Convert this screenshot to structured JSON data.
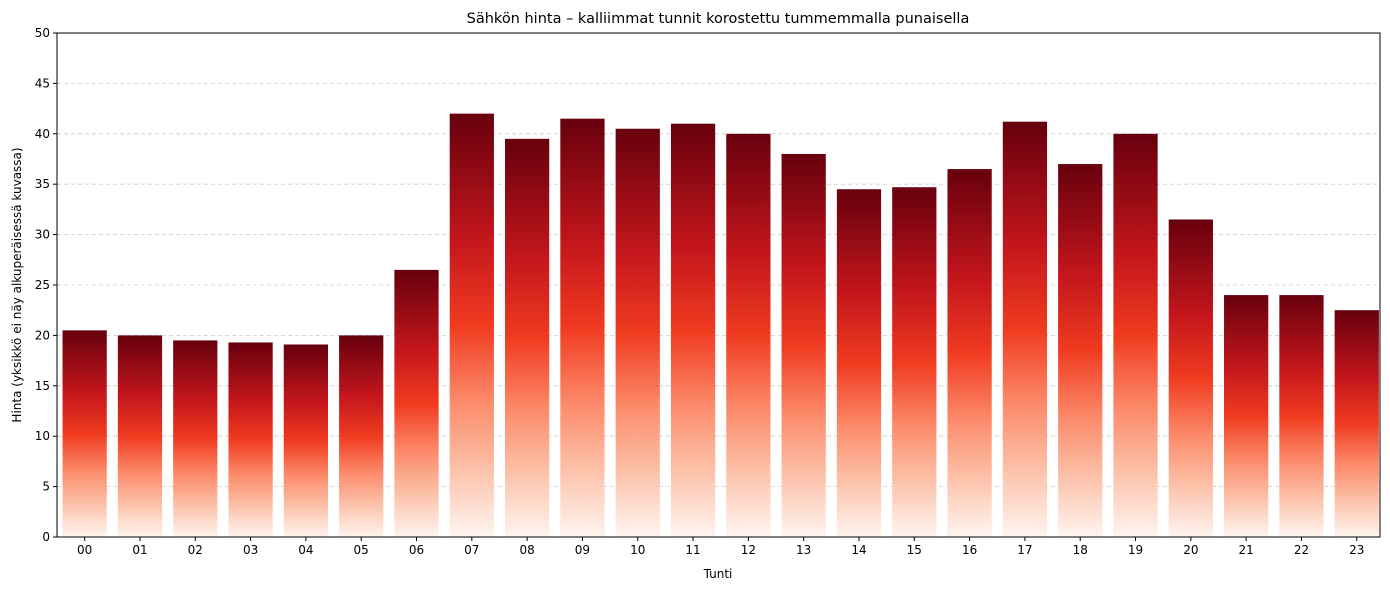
{
  "chart_data": {
    "type": "bar",
    "title": "Sähkön hinta – kalliimmat tunnit korostettu tummemmalla punaisella",
    "xlabel": "Tunti",
    "ylabel": "Hinta (yksikkö ei näy alkuperäisessä kuvassa)",
    "categories": [
      "00",
      "01",
      "02",
      "03",
      "04",
      "05",
      "06",
      "07",
      "08",
      "09",
      "10",
      "11",
      "12",
      "13",
      "14",
      "15",
      "16",
      "17",
      "18",
      "19",
      "20",
      "21",
      "22",
      "23"
    ],
    "values": [
      20.5,
      20.0,
      19.5,
      19.3,
      19.1,
      20.0,
      26.5,
      42.0,
      39.5,
      41.5,
      40.5,
      41.0,
      40.0,
      38.0,
      34.5,
      34.7,
      36.5,
      41.2,
      37.0,
      40.0,
      31.5,
      24.0,
      24.0,
      22.5
    ],
    "ylim": [
      0,
      50
    ],
    "yticks": [
      0,
      5,
      10,
      15,
      20,
      25,
      30,
      35,
      40,
      45,
      50
    ],
    "grid": "y-dashed",
    "legend": "none",
    "colors": {
      "gradient_top": "#67000d",
      "gradient_upper": "#c4161c",
      "gradient_mid": "#f03b20",
      "gradient_lower": "#fc8a6a",
      "gradient_light": "#fcbba1",
      "gradient_bottom": "#fff5f0",
      "grid": "#cccccc"
    }
  }
}
